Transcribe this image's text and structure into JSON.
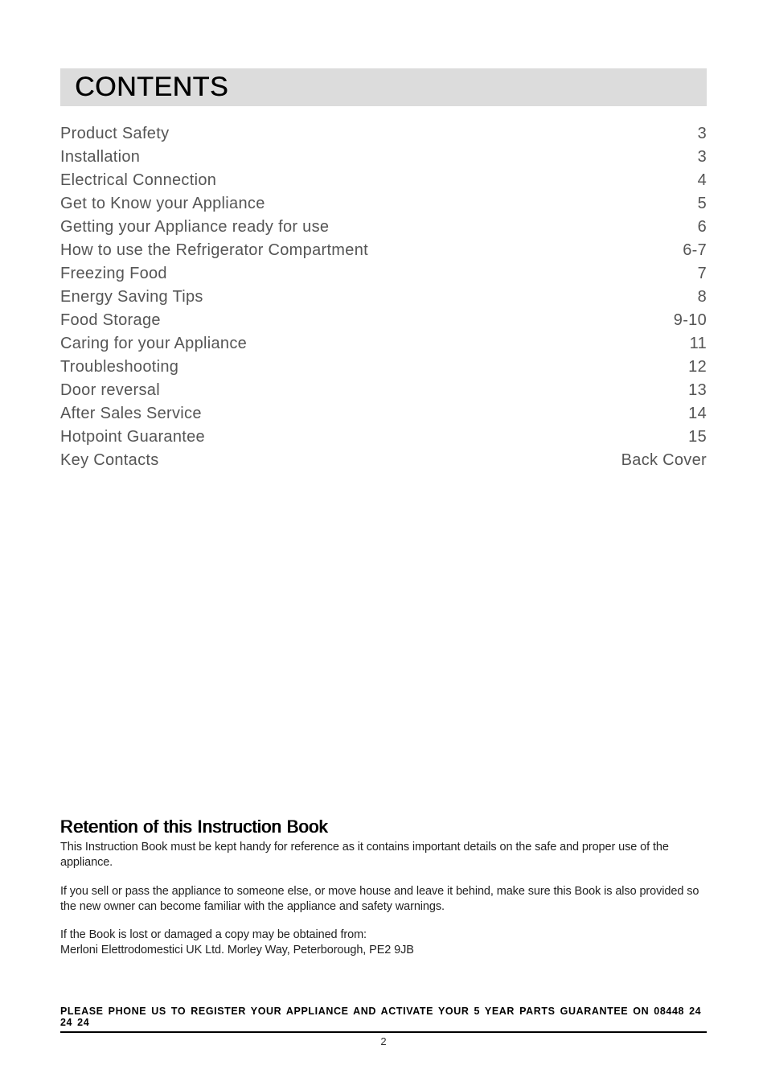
{
  "title": "CONTENTS",
  "toc": [
    {
      "label": "Product Safety",
      "page": "3"
    },
    {
      "label": "Installation",
      "page": "3"
    },
    {
      "label": "Electrical Connection",
      "page": "4"
    },
    {
      "label": "Get to Know your Appliance",
      "page": "5"
    },
    {
      "label": "Getting your Appliance ready for use",
      "page": "6"
    },
    {
      "label": "How to use the Refrigerator Compartment",
      "page": "6-7"
    },
    {
      "label": "Freezing Food",
      "page": "7"
    },
    {
      "label": "Energy Saving Tips",
      "page": "8"
    },
    {
      "label": "Food Storage",
      "page": "9-10"
    },
    {
      "label": "Caring for your Appliance",
      "page": "11"
    },
    {
      "label": "Troubleshooting",
      "page": "12"
    },
    {
      "label": "Door reversal",
      "page": "13"
    },
    {
      "label": "After Sales Service",
      "page": "14"
    },
    {
      "label": "Hotpoint Guarantee",
      "page": "15"
    },
    {
      "label": "Key Contacts",
      "page": "Back Cover"
    }
  ],
  "retention": {
    "heading": "Retention of this Instruction Book",
    "p1": "This Instruction Book must be kept handy for reference as it contains important details on the safe and proper use of the appliance.",
    "p2": "If you sell or pass the appliance to someone else, or move house and leave it behind, make sure this Book is also provided so the new owner can become familiar with the appliance and safety warnings.",
    "p3": "If the Book is lost or damaged a copy may be obtained from:",
    "p4": "Merloni Elettrodomestici UK Ltd. Morley Way, Peterborough, PE2 9JB"
  },
  "footer": {
    "register": "PLEASE PHONE US TO REGISTER YOUR APPLIANCE AND ACTIVATE YOUR 5 YEAR PARTS GUARANTEE ON 08448 24 24 24",
    "pagenum": "2"
  }
}
